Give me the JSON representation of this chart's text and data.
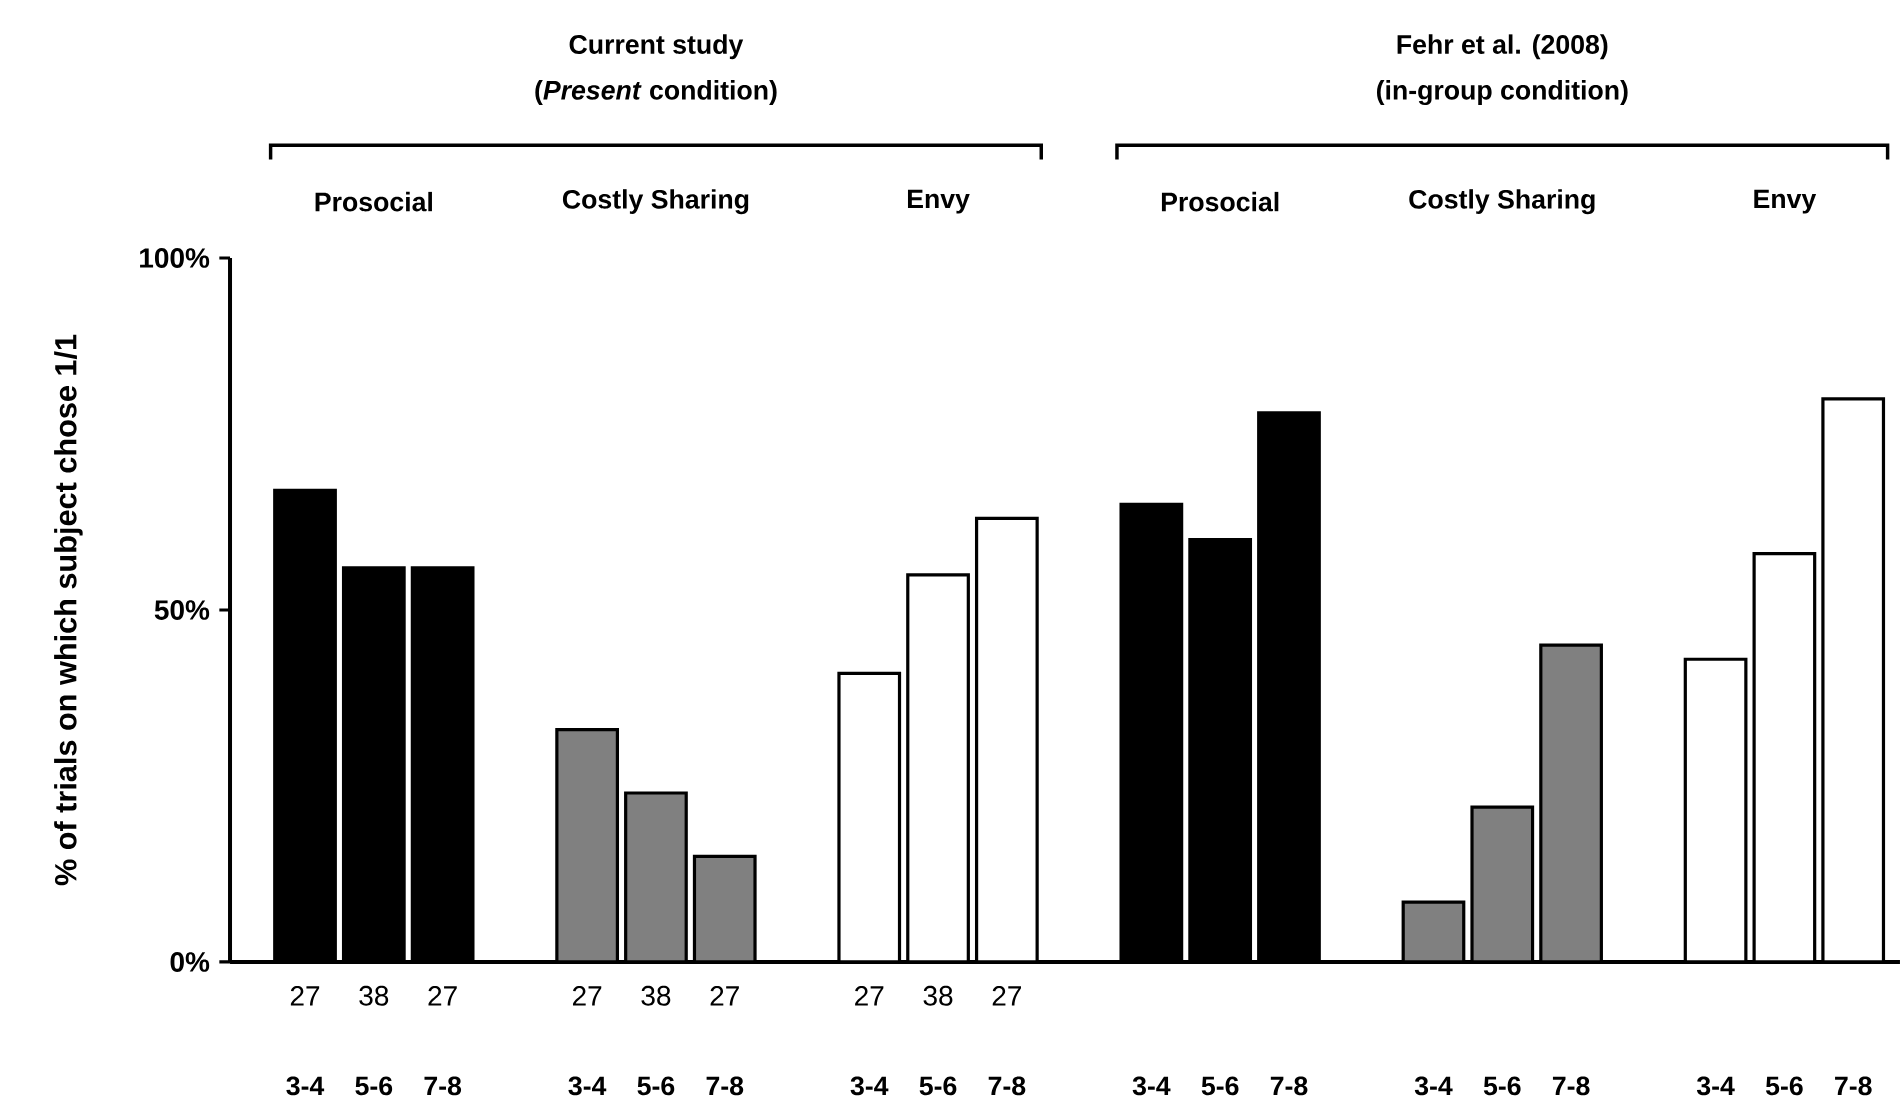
{
  "chart_data": {
    "type": "bar",
    "ylabel": "% of trials on which subject chose 1/1",
    "categories": [
      "3-4",
      "5-6",
      "7-8",
      "3-4",
      "5-6",
      "7-8",
      "3-4",
      "5-6",
      "7-8",
      "3-4",
      "5-6",
      "7-8",
      "3-4",
      "5-6",
      "7-8",
      "3-4",
      "5-6",
      "7-8"
    ],
    "values": [
      67,
      56,
      56,
      33,
      24,
      15,
      41,
      55,
      63,
      65,
      60,
      78,
      8.5,
      22,
      45,
      43,
      58,
      80
    ],
    "colors": [
      "#000000",
      "#000000",
      "#000000",
      "#808080",
      "#808080",
      "#808080",
      "#ffffff",
      "#ffffff",
      "#ffffff",
      "#000000",
      "#000000",
      "#000000",
      "#808080",
      "#808080",
      "#808080",
      "#ffffff",
      "#ffffff",
      "#ffffff"
    ],
    "ylim": [
      0,
      100
    ],
    "yticks": [
      {
        "value": 0,
        "label": "0%"
      },
      {
        "value": 50,
        "label": "50%"
      },
      {
        "value": 100,
        "label": "100%"
      }
    ],
    "grid": false,
    "annotations": [
      "Current study",
      "(*Present* condition)",
      "Fehr et al. (2008)",
      "(in-group condition)",
      "Prosocial",
      "Costly Sharing",
      "Envy",
      "Prosocial",
      "Costly Sharing",
      "Envy",
      "27",
      "38",
      "27",
      "27",
      "38",
      "27",
      "27",
      "38",
      "27"
    ]
  }
}
